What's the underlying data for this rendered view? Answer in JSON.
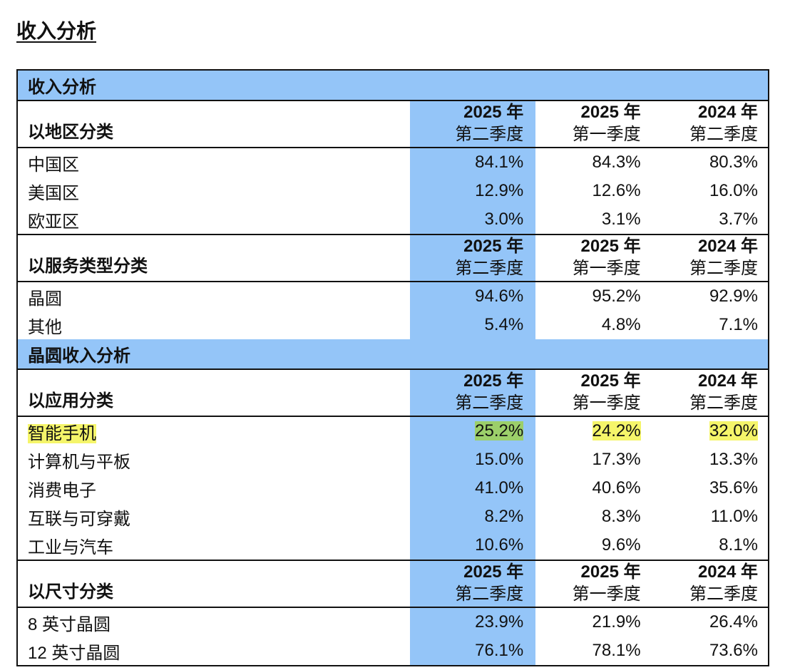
{
  "page_title": "收入分析",
  "columns": [
    {
      "year": "2025 年",
      "quarter": "第二季度"
    },
    {
      "year": "2025 年",
      "quarter": "第一季度"
    },
    {
      "year": "2024 年",
      "quarter": "第二季度"
    }
  ],
  "sections": [
    {
      "title": "收入分析",
      "groups": [
        {
          "label": "以地区分类",
          "rows": [
            {
              "label": "中国区",
              "values": [
                "84.1%",
                "84.3%",
                "80.3%"
              ]
            },
            {
              "label": "美国区",
              "values": [
                "12.9%",
                "12.6%",
                "16.0%"
              ]
            },
            {
              "label": "欧亚区",
              "values": [
                "3.0%",
                "3.1%",
                "3.7%"
              ]
            }
          ]
        },
        {
          "label": "以服务类型分类",
          "rows": [
            {
              "label": "晶圆",
              "values": [
                "94.6%",
                "95.2%",
                "92.9%"
              ]
            },
            {
              "label": "其他",
              "values": [
                "5.4%",
                "4.8%",
                "7.1%"
              ]
            }
          ]
        }
      ]
    },
    {
      "title": "晶圆收入分析",
      "groups": [
        {
          "label": "以应用分类",
          "rows": [
            {
              "label": "智能手机",
              "values": [
                "25.2%",
                "24.2%",
                "32.0%"
              ],
              "highlight": true
            },
            {
              "label": "计算机与平板",
              "values": [
                "15.0%",
                "17.3%",
                "13.3%"
              ]
            },
            {
              "label": "消费电子",
              "values": [
                "41.0%",
                "40.6%",
                "35.6%"
              ]
            },
            {
              "label": "互联与可穿戴",
              "values": [
                "8.2%",
                "8.3%",
                "11.0%"
              ]
            },
            {
              "label": "工业与汽车",
              "values": [
                "10.6%",
                "9.6%",
                "8.1%"
              ]
            }
          ]
        },
        {
          "label": "以尺寸分类",
          "rows": [
            {
              "label": "8 英寸晶圆",
              "values": [
                "23.9%",
                "21.9%",
                "26.4%"
              ]
            },
            {
              "label": "12 英寸晶圆",
              "values": [
                "76.1%",
                "78.1%",
                "73.6%"
              ]
            }
          ]
        }
      ]
    }
  ],
  "colors": {
    "section_header": "#94c5f8",
    "current_column": "#94c5f8",
    "highlight_yellow": "#f5f56a",
    "highlight_green": "#9ccf6a"
  }
}
